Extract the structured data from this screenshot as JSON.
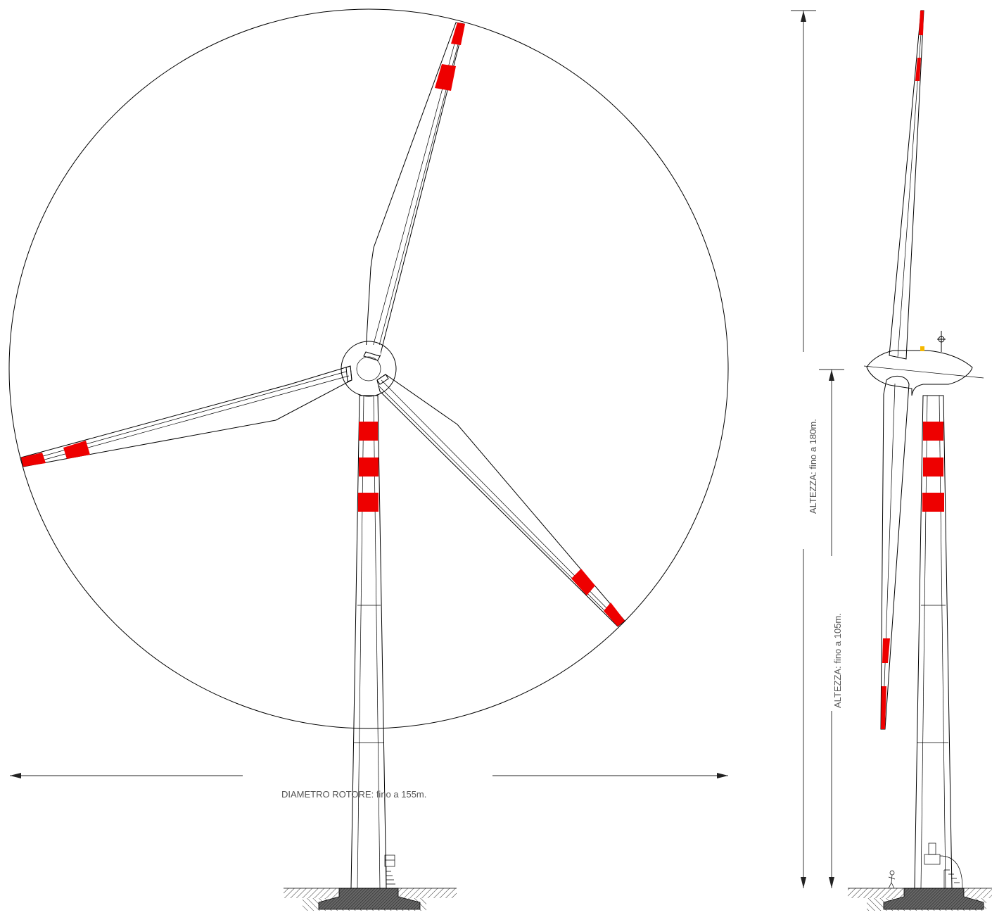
{
  "labels": {
    "rotor_diameter": "DIAMETRO ROTORE: fino a 155m.",
    "tip_height": "ALTEZZA: fino a 180m.",
    "hub_height": "ALTEZZA: fino a 105m."
  },
  "colors": {
    "marking": "#ee0000",
    "line": "#000000",
    "ground_hatch": "#333333",
    "foundation": "#555555",
    "light": "#f5b800"
  },
  "icons": {
    "hub_light": "aviation-light-icon",
    "person": "person-figure-icon",
    "door": "tower-door-icon"
  }
}
